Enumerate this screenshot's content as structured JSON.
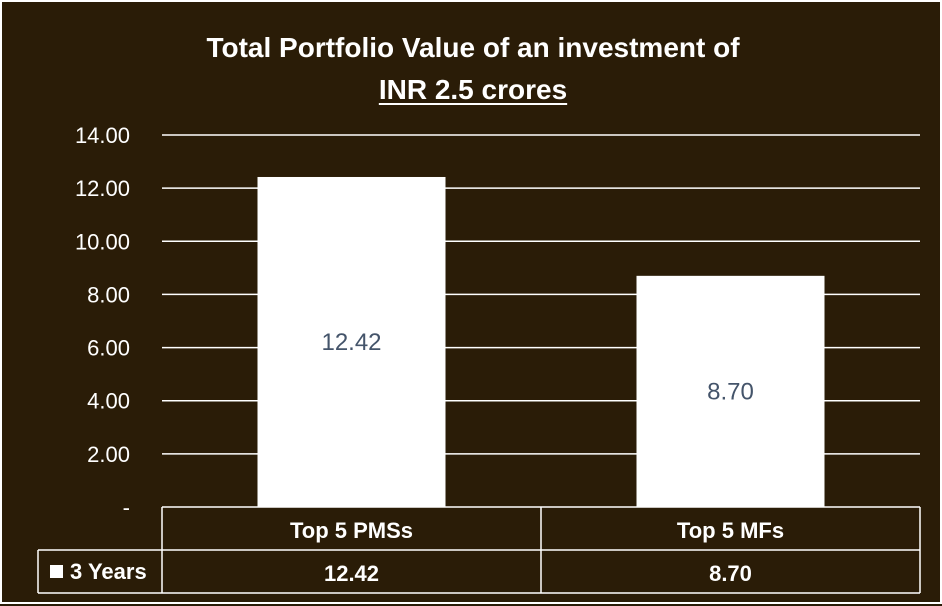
{
  "colors": {
    "background": "#2a1c07",
    "bar": "#ffffff",
    "gridline": "#ffffff",
    "text": "#ffffff",
    "data_label": "#44546a"
  },
  "chart_data": {
    "type": "bar",
    "title_line1": "Total Portfolio Value of an investment of",
    "title_line2": "INR 2.5 crores",
    "categories": [
      "Top 5 PMSs",
      "Top 5 MFs"
    ],
    "series": [
      {
        "name": "3 Years",
        "values": [
          12.42,
          8.7
        ],
        "value_labels": [
          "12.42",
          "8.70"
        ]
      }
    ],
    "yticks": [
      "-",
      "2.00",
      "4.00",
      "6.00",
      "8.00",
      "10.00",
      "12.00",
      "14.00"
    ],
    "ylim": [
      0,
      14
    ],
    "grid": true,
    "legend": "data table below chart"
  }
}
